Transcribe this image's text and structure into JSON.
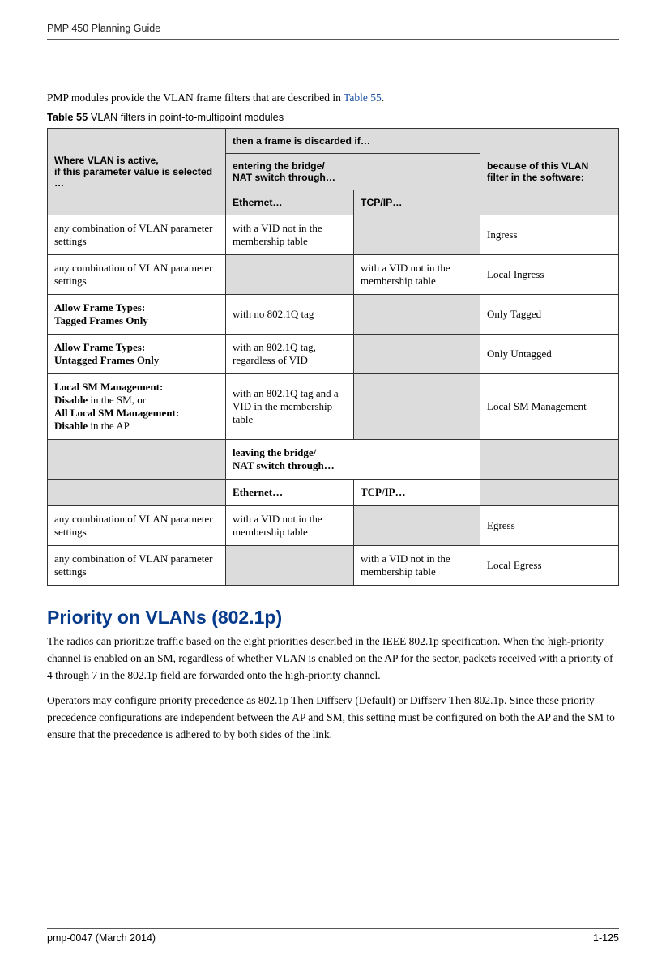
{
  "doc_title": "PMP 450 Planning Guide",
  "intro_a": "PMP modules provide the VLAN frame filters that are described in ",
  "intro_link": "Table 55",
  "intro_b": ".",
  "tbl_caption_bold": "Table 55",
  "tbl_caption_rest": " VLAN filters in point-to-multipoint modules",
  "h_where_a": "Where VLAN is active,",
  "h_where_b": "if this parameter value is selected …",
  "h_then": "then a frame is discarded if…",
  "h_because": "because of this VLAN filter in the software:",
  "h_enter_a": "entering the bridge/",
  "h_enter_b": "NAT switch through…",
  "h_eth": "Ethernet…",
  "h_tcp": "TCP/IP…",
  "r1_a": "any combination of VLAN parameter settings",
  "r1_b": "with a VID not in the",
  "r1_b2": "membership table",
  "r1_d": "Ingress",
  "r2_a": "any combination of VLAN parameter settings",
  "r2_c": "with a VID not in the membership table",
  "r2_d": "Local Ingress",
  "r3_a1": "Allow Frame Types:",
  "r3_a2": "Tagged Frames Only",
  "r3_b": "with no 802.1Q tag",
  "r3_d": "Only Tagged",
  "r4_a1": "Allow Frame Types:",
  "r4_a2": "Untagged Frames Only",
  "r4_b": "with an 802.1Q tag, regardless of VID",
  "r4_d": "Only Untagged",
  "r5_a1": "Local SM Management:",
  "r5_a2a": "Disable",
  "r5_a2b": " in the SM, or",
  "r5_a3": "All Local SM Management:",
  "r5_a4a": "Disable",
  "r5_a4b": " in the AP",
  "r5_b": "with an 802.1Q tag and a VID in the membership table",
  "r5_d": "Local SM Management",
  "mid_a": "leaving the bridge/",
  "mid_b": "NAT switch through…",
  "mid_eth": "Ethernet…",
  "mid_tcp": "TCP/IP…",
  "r6_a": "any combination of VLAN parameter settings",
  "r6_b": "with a VID not in the",
  "r6_b2": "membership table",
  "r6_d": "Egress",
  "r7_a": "any combination of VLAN parameter settings",
  "r7_c": "with a VID not in the membership table",
  "r7_d": "Local Egress",
  "sec_head": "Priority on VLANs (802.1p)",
  "para1": "The radios can prioritize traffic based on the eight priorities described in the IEEE 802.1p specification. When the high-priority channel is enabled on an SM, regardless of whether VLAN is enabled on the AP for the sector, packets received with a priority of 4 through 7 in the 802.1p field are forwarded onto the high-priority channel.",
  "para2": "Operators may configure priority precedence as 802.1p Then Diffserv (Default) or Diffserv Then 802.1p.  Since these priority precedence configurations are independent between the AP and SM, this setting must be configured on both the AP and the SM to ensure that the precedence is adhered to by both sides of the link.",
  "footer_left": "pmp-0047 (March 2014)",
  "footer_right": "1-125"
}
